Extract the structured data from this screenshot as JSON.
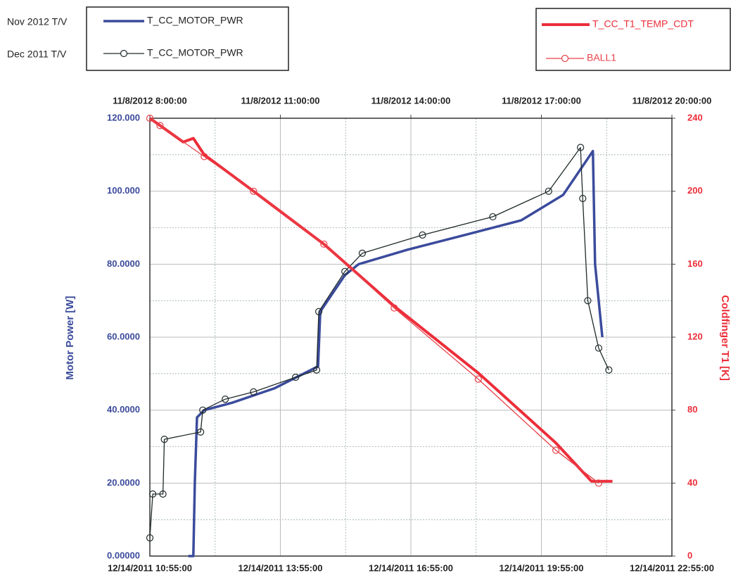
{
  "chart_data": {
    "type": "line",
    "ylabel": "Motor Power [W]",
    "y2label": "Coldfinger T1 [K]",
    "xlim": [
      "2011-12-14T10:55:00",
      "2011-12-14T22:55:00"
    ],
    "xticks": [
      {
        "value": "2011-12-14T10:55:00",
        "label": "12/14/2011 10:55:00"
      },
      {
        "value": "2011-12-14T13:55:00",
        "label": "12/14/2011 13:55:00"
      },
      {
        "value": "2011-12-14T16:55:00",
        "label": "12/14/2011 16:55:00"
      },
      {
        "value": "2011-12-14T19:55:00",
        "label": "12/14/2011 19:55:00"
      },
      {
        "value": "2011-12-14T22:55:00",
        "label": "12/14/2011 22:55:00"
      }
    ],
    "x2lim": [
      "2012-11-08T08:00:00",
      "2012-11-08T20:00:00"
    ],
    "x2ticks": [
      {
        "value": "2012-11-08T08:00:00",
        "label": "11/8/2012 8:00:00"
      },
      {
        "value": "2012-11-08T11:00:00",
        "label": "11/8/2012 11:00:00"
      },
      {
        "value": "2012-11-08T14:00:00",
        "label": "11/8/2012 14:00:00"
      },
      {
        "value": "2012-11-08T17:00:00",
        "label": "11/8/2012 17:00:00"
      },
      {
        "value": "2012-11-08T20:00:00",
        "label": "11/8/2012 20:00:00"
      }
    ],
    "ylim": [
      0,
      120
    ],
    "yticks": [
      {
        "value": 0,
        "label": "0.00000"
      },
      {
        "value": 20,
        "label": "20.0000"
      },
      {
        "value": 40,
        "label": "40.0000"
      },
      {
        "value": 60,
        "label": "60.0000"
      },
      {
        "value": 80,
        "label": "80.0000"
      },
      {
        "value": 100,
        "label": "100.000"
      },
      {
        "value": 120,
        "label": "120.000"
      }
    ],
    "y2lim": [
      0,
      240
    ],
    "y2ticks": [
      0,
      40,
      80,
      120,
      160,
      200,
      240
    ],
    "grid": true,
    "series": [
      {
        "name": "T_CC_MOTOR_PWR",
        "group": "Nov 2012 T/V",
        "color": "#3b4b9c",
        "x_axis": "x2",
        "width": 3.5,
        "marker": "none",
        "x": [
          "2012-11-08T08:53:00",
          "2012-11-08T09:00:00",
          "2012-11-08T09:02:00",
          "2012-11-08T09:05:00",
          "2012-11-08T09:15:00",
          "2012-11-08T09:53:00",
          "2012-11-08T10:52:00",
          "2012-11-08T11:52:00",
          "2012-11-08T11:55:00",
          "2012-11-08T12:29:00",
          "2012-11-08T12:48:00",
          "2012-11-08T13:56:00",
          "2012-11-08T15:14:00",
          "2012-11-08T16:32:00",
          "2012-11-08T17:30:00",
          "2012-11-08T18:11:00",
          "2012-11-08T18:14:00",
          "2012-11-08T18:24:00"
        ],
        "values": [
          0,
          0,
          20,
          38,
          40,
          42,
          46,
          52,
          67,
          77,
          80,
          84,
          88,
          92,
          99,
          111,
          80,
          60
        ]
      },
      {
        "name": "T_CC_MOTOR_PWR",
        "group": "Dec 2011 T/V",
        "color": "#1f2a2a",
        "width": 1.3,
        "marker": "circle",
        "x": [
          "2011-12-14T10:55:00",
          "2011-12-14T10:59:00",
          "2011-12-14T11:13:00",
          "2011-12-14T11:15:00",
          "2011-12-14T12:05:00",
          "2011-12-14T12:08:00",
          "2011-12-14T12:39:00",
          "2011-12-14T13:18:00",
          "2011-12-14T14:16:00",
          "2011-12-14T14:45:00",
          "2011-12-14T14:48:00",
          "2011-12-14T15:24:00",
          "2011-12-14T15:48:00",
          "2011-12-14T17:11:00",
          "2011-12-14T18:48:00",
          "2011-12-14T20:05:00",
          "2011-12-14T20:49:00",
          "2011-12-14T20:52:00",
          "2011-12-14T20:59:00",
          "2011-12-14T21:14:00",
          "2011-12-14T21:28:00"
        ],
        "values": [
          5,
          17,
          17,
          32,
          34,
          40,
          43,
          45,
          49,
          51,
          67,
          78,
          83,
          88,
          93,
          100,
          112,
          98,
          70,
          57,
          51
        ]
      },
      {
        "name": "T_CC_T1_TEMP_CDT",
        "color": "#ec2e3a",
        "axis": "y2",
        "x_axis": "x2",
        "width": 4,
        "marker": "none",
        "x": [
          "2012-11-08T08:00:00",
          "2012-11-08T08:46:00",
          "2012-11-08T09:00:00",
          "2012-11-08T09:15:00",
          "2012-11-08T10:23:00",
          "2012-11-08T12:00:00",
          "2012-11-08T13:37:00",
          "2012-11-08T15:34:00",
          "2012-11-08T17:20:00",
          "2012-11-08T18:09:00",
          "2012-11-08T18:38:00"
        ],
        "values": [
          240,
          227,
          229,
          220,
          200,
          171,
          137,
          100,
          62,
          41,
          41
        ]
      },
      {
        "name": "BALL1",
        "color": "#e8414a",
        "axis": "y2",
        "width": 1.3,
        "marker": "circle",
        "x": [
          "2011-12-14T10:55:00",
          "2011-12-14T11:09:00",
          "2011-12-14T12:10:00",
          "2011-12-14T13:18:00",
          "2011-12-14T14:55:00",
          "2011-12-14T16:32:00",
          "2011-12-14T18:28:00",
          "2011-12-14T20:15:00",
          "2011-12-14T21:14:00"
        ],
        "values": [
          240,
          236,
          219,
          200,
          171,
          136,
          97,
          58,
          40
        ]
      }
    ]
  }
}
